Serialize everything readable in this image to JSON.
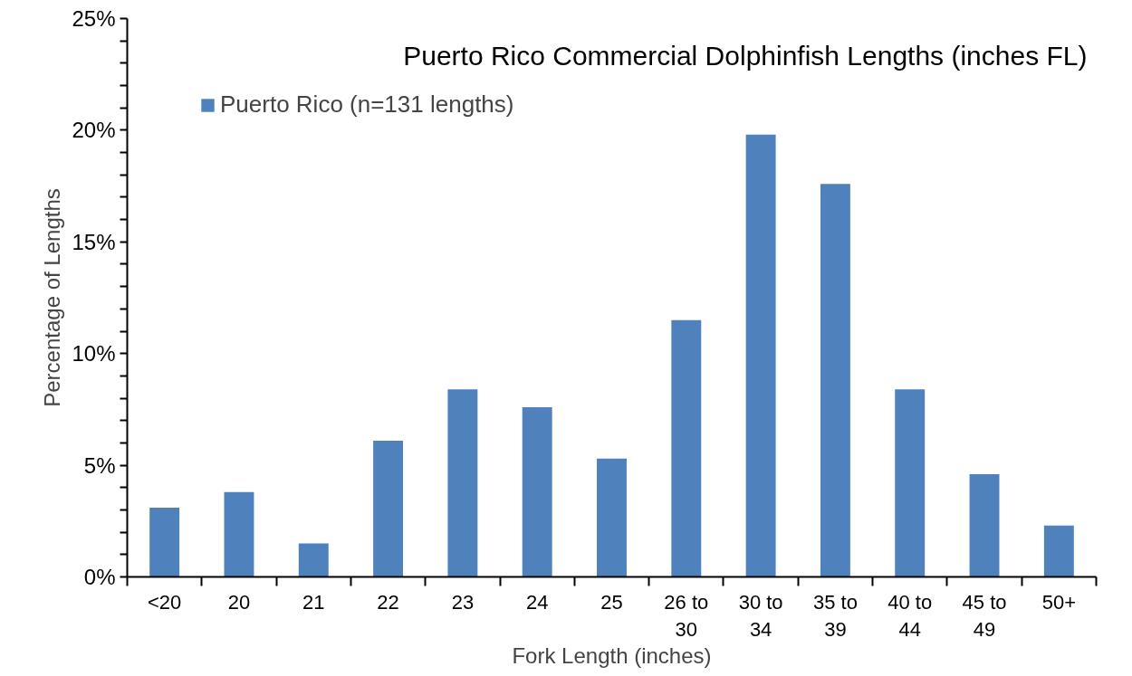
{
  "chart_data": {
    "type": "bar",
    "title": "Puerto Rico Commercial Dolphinfish Lengths (inches FL)",
    "xlabel": "Fork Length (inches)",
    "ylabel": "Percentage of Lengths",
    "categories": [
      "<20",
      "20",
      "21",
      "22",
      "23",
      "24",
      "25",
      "26 to\n30",
      "30 to\n34",
      "35 to\n39",
      "40 to\n44",
      "45 to\n49",
      "50+"
    ],
    "series": [
      {
        "name": "Puerto Rico (n=131 lengths)",
        "color": "#4f81bd",
        "values": [
          3.1,
          3.8,
          1.5,
          6.1,
          8.4,
          7.6,
          5.3,
          11.5,
          19.8,
          17.6,
          8.4,
          4.6,
          2.3
        ]
      }
    ],
    "ylim": [
      0,
      25
    ],
    "yticks": [
      {
        "value": 0,
        "label": "0%"
      },
      {
        "value": 1,
        "label": null
      },
      {
        "value": 2,
        "label": null
      },
      {
        "value": 3,
        "label": null
      },
      {
        "value": 4,
        "label": null
      },
      {
        "value": 5,
        "label": "5%"
      },
      {
        "value": 6,
        "label": null
      },
      {
        "value": 7,
        "label": null
      },
      {
        "value": 8,
        "label": null
      },
      {
        "value": 9,
        "label": null
      },
      {
        "value": 10,
        "label": "10%"
      },
      {
        "value": 11,
        "label": null
      },
      {
        "value": 12,
        "label": null
      },
      {
        "value": 13,
        "label": null
      },
      {
        "value": 14,
        "label": null
      },
      {
        "value": 15,
        "label": "15%"
      },
      {
        "value": 16,
        "label": null
      },
      {
        "value": 17,
        "label": null
      },
      {
        "value": 18,
        "label": null
      },
      {
        "value": 19,
        "label": null
      },
      {
        "value": 20,
        "label": "20%"
      },
      {
        "value": 21,
        "label": null
      },
      {
        "value": 22,
        "label": null
      },
      {
        "value": 23,
        "label": null
      },
      {
        "value": 24,
        "label": null
      },
      {
        "value": 25,
        "label": "25%"
      }
    ],
    "grid": false,
    "legend": "top left"
  }
}
